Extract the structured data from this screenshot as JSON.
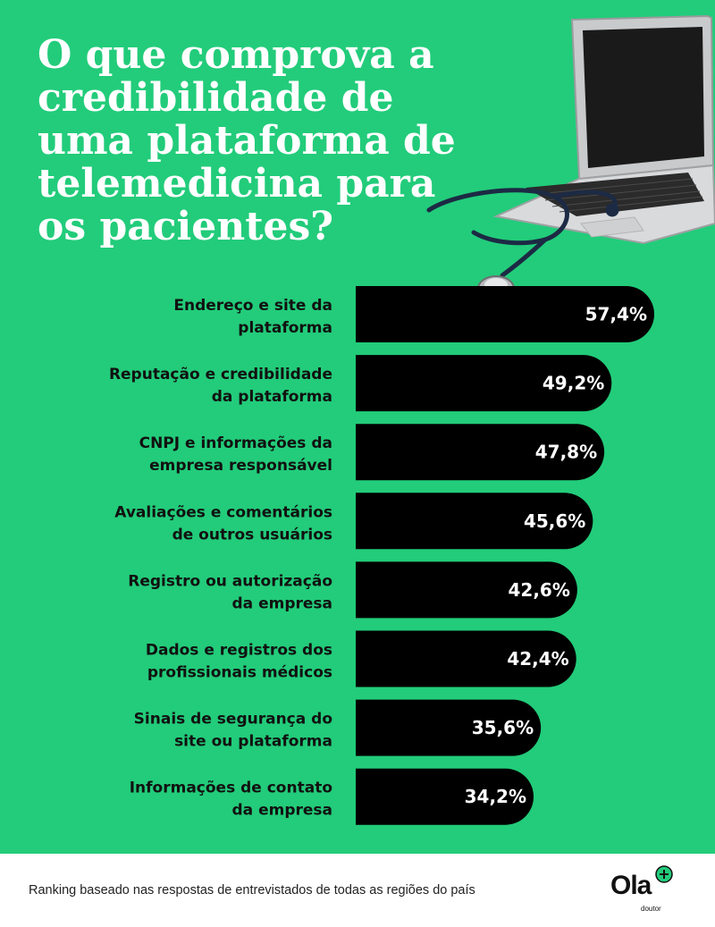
{
  "title": "O que comprova a credibilidade de uma plataforma de telemedicina para os pacientes?",
  "chart_data": {
    "type": "bar",
    "orientation": "horizontal",
    "categories": [
      [
        "Endereço e site da",
        "plataforma"
      ],
      [
        "Reputação e credibilidade",
        "da plataforma"
      ],
      [
        "CNPJ e informações da",
        "empresa responsável"
      ],
      [
        "Avaliações e comentários",
        "de outros usuários"
      ],
      [
        "Registro ou autorização",
        "da empresa"
      ],
      [
        "Dados e registros dos",
        "profissionais médicos"
      ],
      [
        "Sinais de segurança do",
        "site ou plataforma"
      ],
      [
        "Informações de contato",
        "da empresa"
      ]
    ],
    "values": [
      57.4,
      49.2,
      47.8,
      45.6,
      42.6,
      42.4,
      35.6,
      34.2
    ],
    "value_labels": [
      "57,4%",
      "49,2%",
      "47,8%",
      "45,6%",
      "42,6%",
      "42,4%",
      "35,6%",
      "34,2%"
    ],
    "bar_color": "#000000",
    "background_color": "#22cc7a",
    "grid": false,
    "legend": "none"
  },
  "footer": {
    "note": "Ranking baseado nas respostas de entrevistados de todas as regiões do país"
  },
  "logo": {
    "word": "Ola",
    "sub": "doutor",
    "accent_color": "#22cc7a"
  },
  "illustration": "laptop-with-stethoscope"
}
